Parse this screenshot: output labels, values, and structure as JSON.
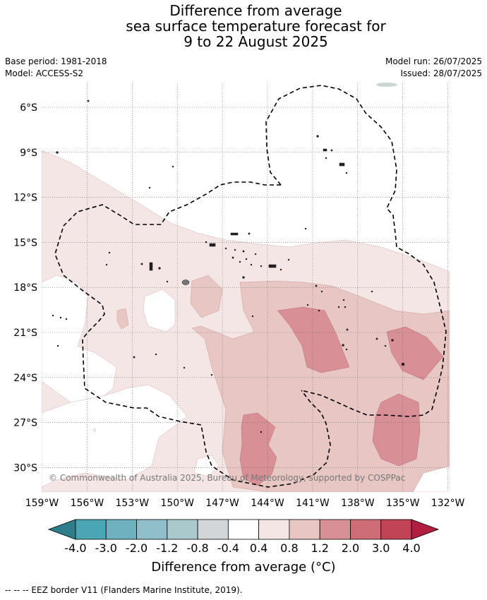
{
  "title": {
    "line1": "Difference from average",
    "line2": "sea surface temperature forecast for",
    "line3": "9 to 22 August 2025"
  },
  "meta": {
    "base_period": "Base period: 1981-2018",
    "model": "Model: ACCESS-S2",
    "model_run": "Model run: 26/07/2025",
    "issued": "Issued: 28/07/2025"
  },
  "map": {
    "lat_labels": [
      "6°S",
      "9°S",
      "12°S",
      "15°S",
      "18°S",
      "21°S",
      "24°S",
      "27°S",
      "30°S"
    ],
    "lon_labels": [
      "159°W",
      "156°W",
      "153°W",
      "150°W",
      "147°W",
      "144°W",
      "141°W",
      "138°W",
      "135°W",
      "132°W"
    ],
    "copyright": "© Commonwealth of Australia 2025, Bureau of Meteorology, supported by COSPPac",
    "grid": true
  },
  "colorbar": {
    "ticks": [
      "-4.0",
      "-3.0",
      "-2.0",
      "-1.2",
      "-0.8",
      "-0.4",
      "0.4",
      "0.8",
      "1.2",
      "2.0",
      "3.0",
      "4.0"
    ],
    "colors": [
      "#2e7f8b",
      "#4aa5b5",
      "#6fb1bf",
      "#8ebfca",
      "#a9c9cd",
      "#d2d6d8",
      "#ffffff",
      "#f5e6e6",
      "#e8c6c3",
      "#d88f96",
      "#cf6d77",
      "#c04456",
      "#b01f3f"
    ],
    "title": "Difference from average (°C)"
  },
  "footer": "-- -- -- EEZ border V11 (Flanders Marine Institute, 2019)."
}
